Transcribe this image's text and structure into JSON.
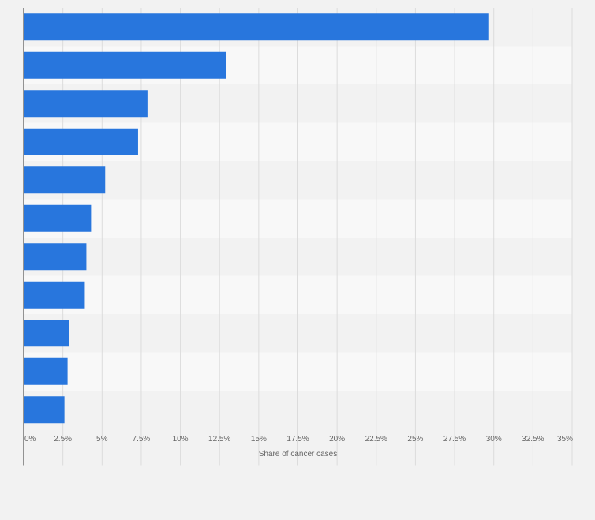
{
  "chart_data": {
    "type": "bar",
    "orientation": "horizontal",
    "title": "",
    "xlabel": "Share of cancer cases",
    "ylabel": "",
    "categories": [
      "",
      "",
      "",
      "",
      "",
      "",
      "",
      "",
      "",
      "",
      ""
    ],
    "values": [
      29.7,
      12.9,
      7.9,
      7.3,
      5.2,
      4.3,
      4.0,
      3.9,
      2.9,
      2.8,
      2.6
    ],
    "unit": "%",
    "xlim": [
      0,
      35
    ],
    "xticks": [
      0,
      2.5,
      5,
      7.5,
      10,
      12.5,
      15,
      17.5,
      20,
      22.5,
      25,
      27.5,
      30,
      32.5,
      35
    ],
    "xtick_labels": [
      "0%",
      "2.5%",
      "5%",
      "7.5%",
      "10%",
      "12.5%",
      "15%",
      "17.5%",
      "20%",
      "22.5%",
      "25%",
      "27.5%",
      "30%",
      "32.5%",
      "35%"
    ],
    "grid": true,
    "legend": "none",
    "colors": {
      "bar": "#2876dd",
      "band_odd": "#f2f2f2",
      "band_even": "#f8f8f8",
      "gridline": "#dcdcdc",
      "axis": "#333333",
      "text": "#666666"
    }
  }
}
